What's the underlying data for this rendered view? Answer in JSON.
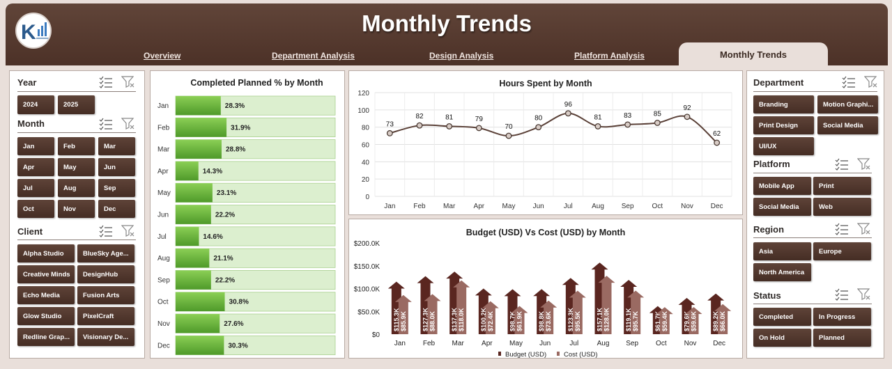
{
  "header": {
    "title": "Monthly Trends",
    "nav": [
      "Overview",
      "Department Analysis",
      "Design Analysis",
      "Platform Analysis"
    ],
    "active_tab": "Monthly Trends",
    "logo_icon": "logo-icon"
  },
  "left_slicers": {
    "year": {
      "title": "Year",
      "items": [
        "2024",
        "2025"
      ]
    },
    "month": {
      "title": "Month",
      "items": [
        "Jan",
        "Feb",
        "Mar",
        "Apr",
        "May",
        "Jun",
        "Jul",
        "Aug",
        "Sep",
        "Oct",
        "Nov",
        "Dec"
      ]
    },
    "client": {
      "title": "Client",
      "items": [
        "Alpha Studio",
        "BlueSky Age...",
        "Creative Minds",
        "DesignHub",
        "Echo Media",
        "Fusion Arts",
        "Glow Studio",
        "PixelCraft",
        "Redline Grap...",
        "Visionary De..."
      ]
    }
  },
  "right_slicers": {
    "department": {
      "title": "Department",
      "items": [
        "Branding",
        "Motion Graphi...",
        "Print Design",
        "Social Media",
        "UI/UX"
      ]
    },
    "platform": {
      "title": "Platform",
      "items": [
        "Mobile App",
        "Print",
        "Social Media",
        "Web"
      ]
    },
    "region": {
      "title": "Region",
      "items": [
        "Asia",
        "Europe",
        "North America"
      ]
    },
    "status": {
      "title": "Status",
      "items": [
        "Completed",
        "In Progress",
        "On Hold",
        "Planned"
      ]
    }
  },
  "colors": {
    "header": "#553a2f",
    "button": "#4f362c",
    "bar_green": "#6fb340",
    "bar_track": "#dcefcf",
    "budget": "#5a2620",
    "cost": "#9a6a62",
    "line": "#5a4037"
  },
  "chart_data": [
    {
      "type": "bar",
      "title": "Completed Planned % by Month",
      "categories": [
        "Jan",
        "Feb",
        "Mar",
        "Apr",
        "May",
        "Jun",
        "Jul",
        "Aug",
        "Sep",
        "Oct",
        "Nov",
        "Dec"
      ],
      "values": [
        28.3,
        31.9,
        28.8,
        14.3,
        23.1,
        22.2,
        14.6,
        21.1,
        22.2,
        30.8,
        27.6,
        30.3
      ],
      "labels": [
        "28.3%",
        "31.9%",
        "28.8%",
        "14.3%",
        "23.1%",
        "22.2%",
        "14.6%",
        "21.1%",
        "22.2%",
        "30.8%",
        "27.6%",
        "30.3%"
      ],
      "orientation": "horizontal",
      "xlim": [
        0,
        100
      ]
    },
    {
      "type": "line",
      "title": "Hours Spent by Month",
      "categories": [
        "Jan",
        "Feb",
        "Mar",
        "Apr",
        "May",
        "Jun",
        "Jul",
        "Aug",
        "Sep",
        "Oct",
        "Nov",
        "Dec"
      ],
      "values": [
        73,
        82,
        81,
        79,
        70,
        80,
        96,
        81,
        83,
        85,
        92,
        62
      ],
      "ylim": [
        0,
        120
      ],
      "yticks": [
        "0",
        "20",
        "40",
        "60",
        "80",
        "100",
        "120"
      ],
      "grid": true
    },
    {
      "type": "bar",
      "title": "Budget (USD) Vs Cost (USD) by Month",
      "categories": [
        "Jan",
        "Feb",
        "Mar",
        "Apr",
        "May",
        "Jun",
        "Jul",
        "Aug",
        "Sep",
        "Oct",
        "Nov",
        "Dec"
      ],
      "series": [
        {
          "name": "Budget (USD)",
          "values": [
            115.3,
            127.3,
            137.3,
            100.2,
            98.7,
            98.8,
            123.3,
            157.1,
            119.1,
            61.7,
            79.6,
            89.2
          ],
          "labels": [
            "$115.3K",
            "$127.3K",
            "$137.3K",
            "$100.2K",
            "$98.7K",
            "$98.8K",
            "$123.3K",
            "$157.1K",
            "$119.1K",
            "$61.7K",
            "$79.6K",
            "$89.2K"
          ]
        },
        {
          "name": "Cost (USD)",
          "values": [
            85.9,
            88.0,
            118.0,
            72.4,
            61.9,
            73.6,
            95.5,
            128.0,
            95.7,
            59.4,
            59.6,
            66.0
          ],
          "labels": [
            "$85.9K",
            "$88.0K",
            "$118.0K",
            "$72.4K",
            "$61.9K",
            "$73.6K",
            "$95.5K",
            "$128.0K",
            "$95.7K",
            "$59.4K",
            "$59.6K",
            "$66.0K"
          ]
        }
      ],
      "ylim": [
        0,
        200
      ],
      "yticks": [
        "$0",
        "$50.0K",
        "$100.0K",
        "$150.0K",
        "$200.0K"
      ],
      "legend": "bottom"
    }
  ]
}
